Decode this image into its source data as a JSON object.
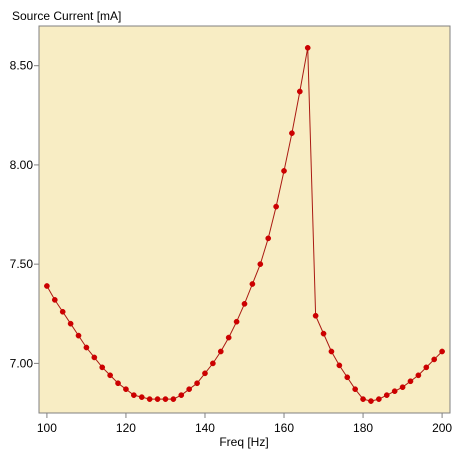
{
  "chart_data": {
    "type": "line",
    "ylabel": "Source Current [mA]",
    "xlabel": "Freq [Hz]",
    "xlim": [
      98,
      202
    ],
    "ylim": [
      6.75,
      8.7
    ],
    "x_ticks": [
      100,
      120,
      140,
      160,
      180,
      200
    ],
    "x_tick_labels": [
      "100",
      "120",
      "140",
      "160",
      "180",
      "200"
    ],
    "y_ticks": [
      7.0,
      7.5,
      8.0,
      8.5
    ],
    "y_tick_labels": [
      "7.00",
      "7.50",
      "8.00",
      "8.50"
    ],
    "grid": false,
    "series": [
      {
        "x": [
          100,
          102,
          104,
          106,
          108,
          110,
          112,
          114,
          116,
          118,
          120,
          122,
          124,
          126,
          128,
          130,
          132,
          134,
          136,
          138,
          140,
          142,
          144,
          146,
          148,
          150,
          152,
          154,
          156,
          158,
          160,
          162,
          164,
          166,
          168,
          170,
          172,
          174,
          176,
          178,
          180,
          182,
          184,
          186,
          188,
          190,
          192,
          194,
          196,
          198,
          200
        ],
        "values": [
          7.39,
          7.32,
          7.26,
          7.2,
          7.14,
          7.08,
          7.03,
          6.98,
          6.94,
          6.9,
          6.87,
          6.84,
          6.83,
          6.82,
          6.82,
          6.82,
          6.82,
          6.84,
          6.87,
          6.9,
          6.95,
          7.0,
          7.06,
          7.13,
          7.21,
          7.3,
          7.4,
          7.5,
          7.63,
          7.79,
          7.97,
          8.16,
          8.37,
          8.59,
          7.24,
          7.15,
          7.06,
          6.99,
          6.93,
          6.87,
          6.82,
          6.81,
          6.82,
          6.84,
          6.86,
          6.88,
          6.91,
          6.94,
          6.98,
          7.02,
          7.06
        ]
      }
    ],
    "colors": {
      "plot_background": "#f8edc4",
      "line": "#aa1a12",
      "marker": "#cc0000",
      "axis": "#808080"
    }
  }
}
